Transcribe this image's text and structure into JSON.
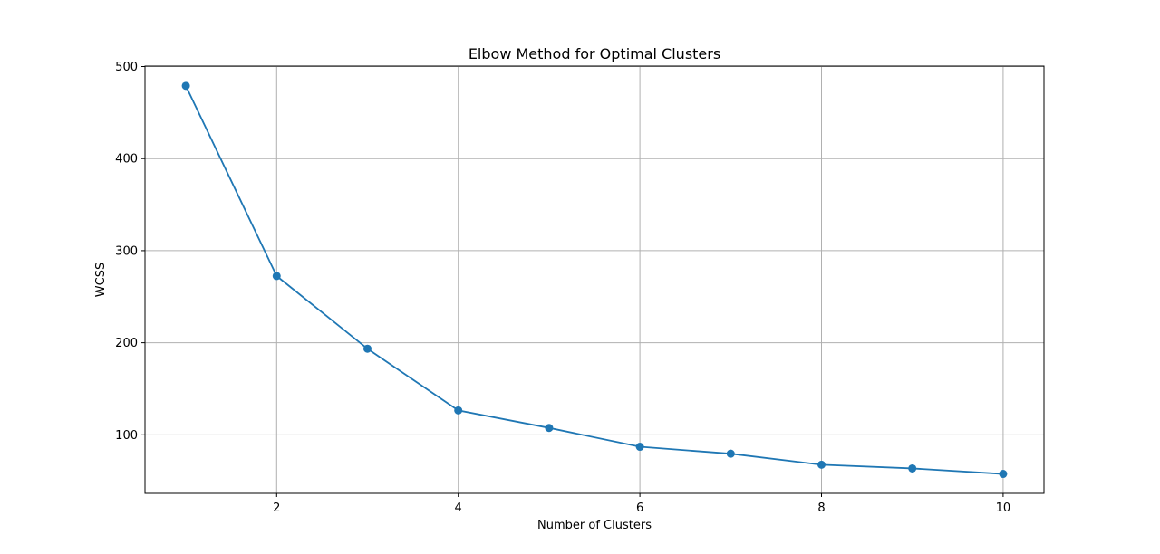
{
  "chart_data": {
    "type": "line",
    "title": "Elbow Method for Optimal Clusters",
    "xlabel": "Number of Clusters",
    "ylabel": "WCSS",
    "x": [
      1,
      2,
      3,
      4,
      5,
      6,
      7,
      8,
      9,
      10
    ],
    "series": [
      {
        "values": [
          479,
          272.5,
          193.5,
          126.5,
          107.5,
          87,
          79.5,
          67.5,
          63.5,
          57.5
        ],
        "color": "#1f77b4",
        "marker": "circle"
      }
    ],
    "xlim": [
      0.55,
      10.45
    ],
    "ylim": [
      36.4,
      500.5
    ],
    "xticks": [
      2,
      4,
      6,
      8,
      10
    ],
    "yticks": [
      100,
      200,
      300,
      400,
      500
    ],
    "grid": true
  }
}
